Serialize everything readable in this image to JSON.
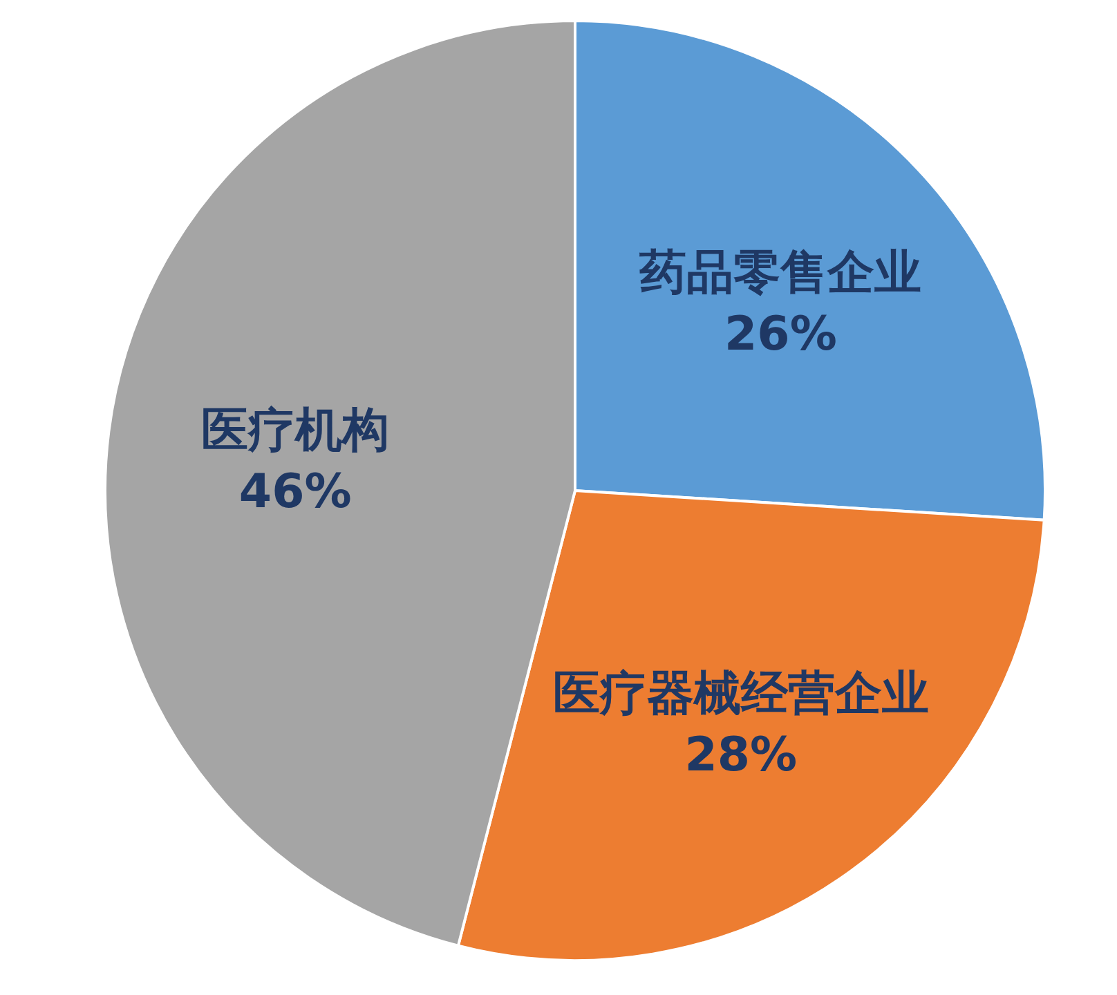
{
  "chart_data": {
    "type": "pie",
    "categories": [
      "药品零售企业",
      "医疗器械经营企业",
      "医疗机构"
    ],
    "values": [
      26,
      28,
      46
    ],
    "colors": [
      "#5b9bd5",
      "#ed7d31",
      "#a5a5a5"
    ],
    "value_labels": [
      "26%",
      "28%",
      "46%"
    ]
  }
}
